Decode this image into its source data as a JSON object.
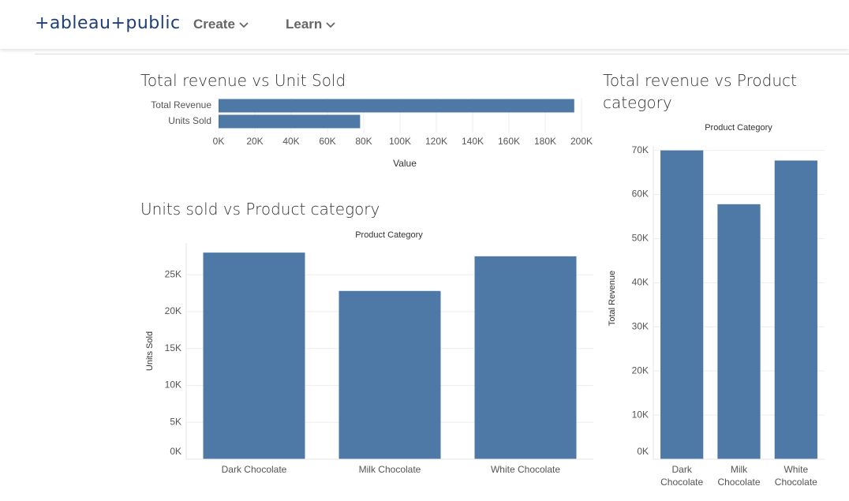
{
  "header": {
    "logo": "+ableau+public",
    "nav": [
      "Create",
      "Learn"
    ]
  },
  "chart_data": [
    {
      "type": "hbar",
      "title": "Total revenue vs Unit Sold",
      "x_label": "Value",
      "categories": [
        "Total Revenue",
        "Units Sold"
      ],
      "values": [
        196000,
        78000
      ],
      "color": "#4e79a7",
      "xlim": [
        0,
        200000
      ],
      "xticks": [
        {
          "value": 0,
          "label": "0K"
        },
        {
          "value": 20000,
          "label": "20K"
        },
        {
          "value": 40000,
          "label": "40K"
        },
        {
          "value": 60000,
          "label": "60K"
        },
        {
          "value": 80000,
          "label": "80K"
        },
        {
          "value": 100000,
          "label": "100K"
        },
        {
          "value": 120000,
          "label": "120K"
        },
        {
          "value": 140000,
          "label": "140K"
        },
        {
          "value": 160000,
          "label": "160K"
        },
        {
          "value": 180000,
          "label": "180K"
        },
        {
          "value": 200000,
          "label": "200K"
        }
      ],
      "grid": true
    },
    {
      "type": "bar",
      "title": "Units sold vs Product category",
      "x_label": "Product Category",
      "y_label": "Units Sold",
      "categories": [
        "Dark Chocolate",
        "Milk Chocolate",
        "White Chocolate"
      ],
      "values": [
        28000,
        22800,
        27500
      ],
      "color": "#4e79a7",
      "ylim": [
        0,
        29300
      ],
      "yticks": [
        {
          "value": 0,
          "label": "0K"
        },
        {
          "value": 5000,
          "label": "5K"
        },
        {
          "value": 10000,
          "label": "10K"
        },
        {
          "value": 15000,
          "label": "15K"
        },
        {
          "value": 20000,
          "label": "20K"
        },
        {
          "value": 25000,
          "label": "25K"
        }
      ],
      "grid": true
    },
    {
      "type": "bar",
      "title": "Total revenue vs Product category",
      "x_label": "Product Category",
      "y_label": "Total Revenue",
      "categories": [
        "Dark Chocolate",
        "Milk Chocolate",
        "White Chocolate"
      ],
      "values": [
        70000,
        57800,
        67700
      ],
      "color": "#4e79a7",
      "ylim": [
        0,
        71000
      ],
      "yticks": [
        {
          "value": 0,
          "label": "0K"
        },
        {
          "value": 10000,
          "label": "10K"
        },
        {
          "value": 20000,
          "label": "20K"
        },
        {
          "value": 30000,
          "label": "30K"
        },
        {
          "value": 40000,
          "label": "40K"
        },
        {
          "value": 50000,
          "label": "50K"
        },
        {
          "value": 60000,
          "label": "60K"
        },
        {
          "value": 70000,
          "label": "70K"
        }
      ],
      "grid": true
    }
  ]
}
